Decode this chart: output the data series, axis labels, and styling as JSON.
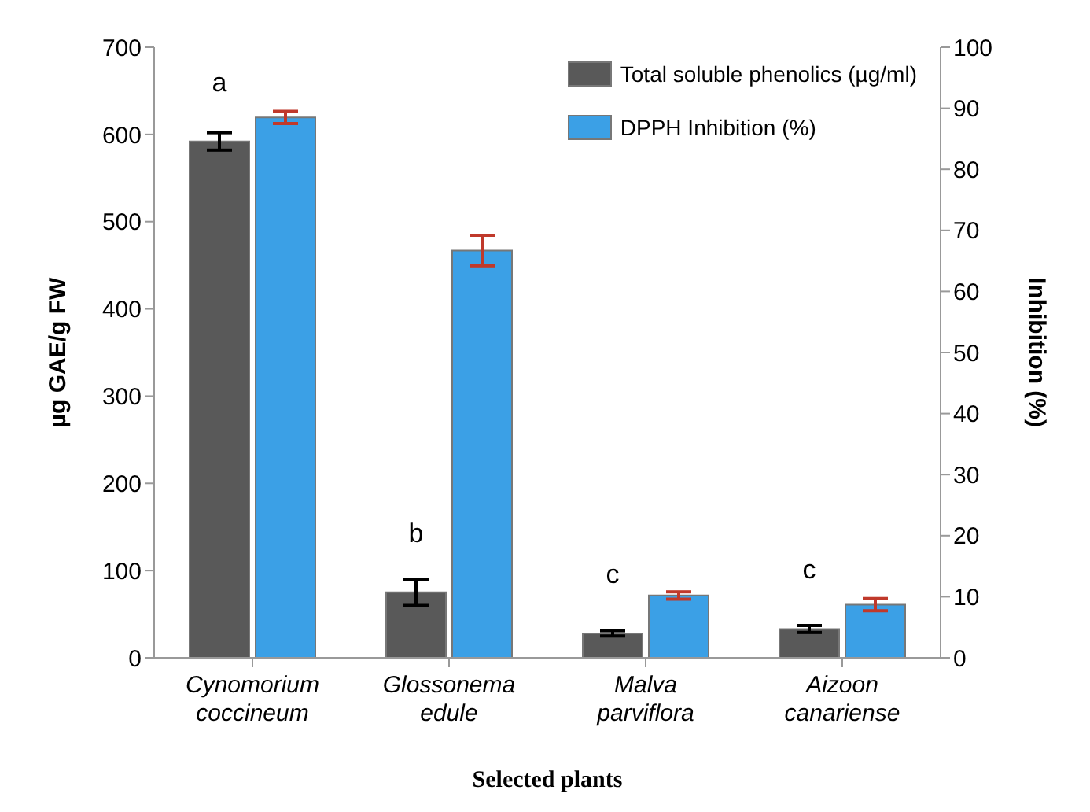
{
  "chart_data": {
    "type": "bar",
    "xlabel": "Selected plants",
    "ylabel": "µg GAE/g FW",
    "y2label": "Inhibition (%)",
    "categories": [
      "Cynomorium coccineum",
      "Glossonema edule",
      "Malva parviflora",
      "Aizoon canariense"
    ],
    "series": [
      {
        "name": "Total soluble phenolics (µg/ml)",
        "color": "#595959",
        "values": [
          592,
          75,
          28,
          33
        ],
        "errors": [
          10,
          15,
          3,
          4
        ]
      },
      {
        "name": "DPPH Inhibition (%)",
        "color": "#3ba0e6",
        "axis": "y2",
        "values": [
          88.5,
          66.7,
          10.2,
          8.7
        ],
        "errors": [
          1,
          2.5,
          0.6,
          1
        ]
      }
    ],
    "ylim": [
      0,
      700
    ],
    "yticks": [
      0,
      100,
      200,
      300,
      400,
      500,
      600,
      700
    ],
    "y2lim": [
      0,
      100
    ],
    "y2ticks": [
      0,
      10,
      20,
      30,
      40,
      50,
      60,
      70,
      80,
      90,
      100
    ],
    "annotations": [
      "a",
      "b",
      "c",
      "c"
    ],
    "legend": "top right",
    "grid": false
  }
}
